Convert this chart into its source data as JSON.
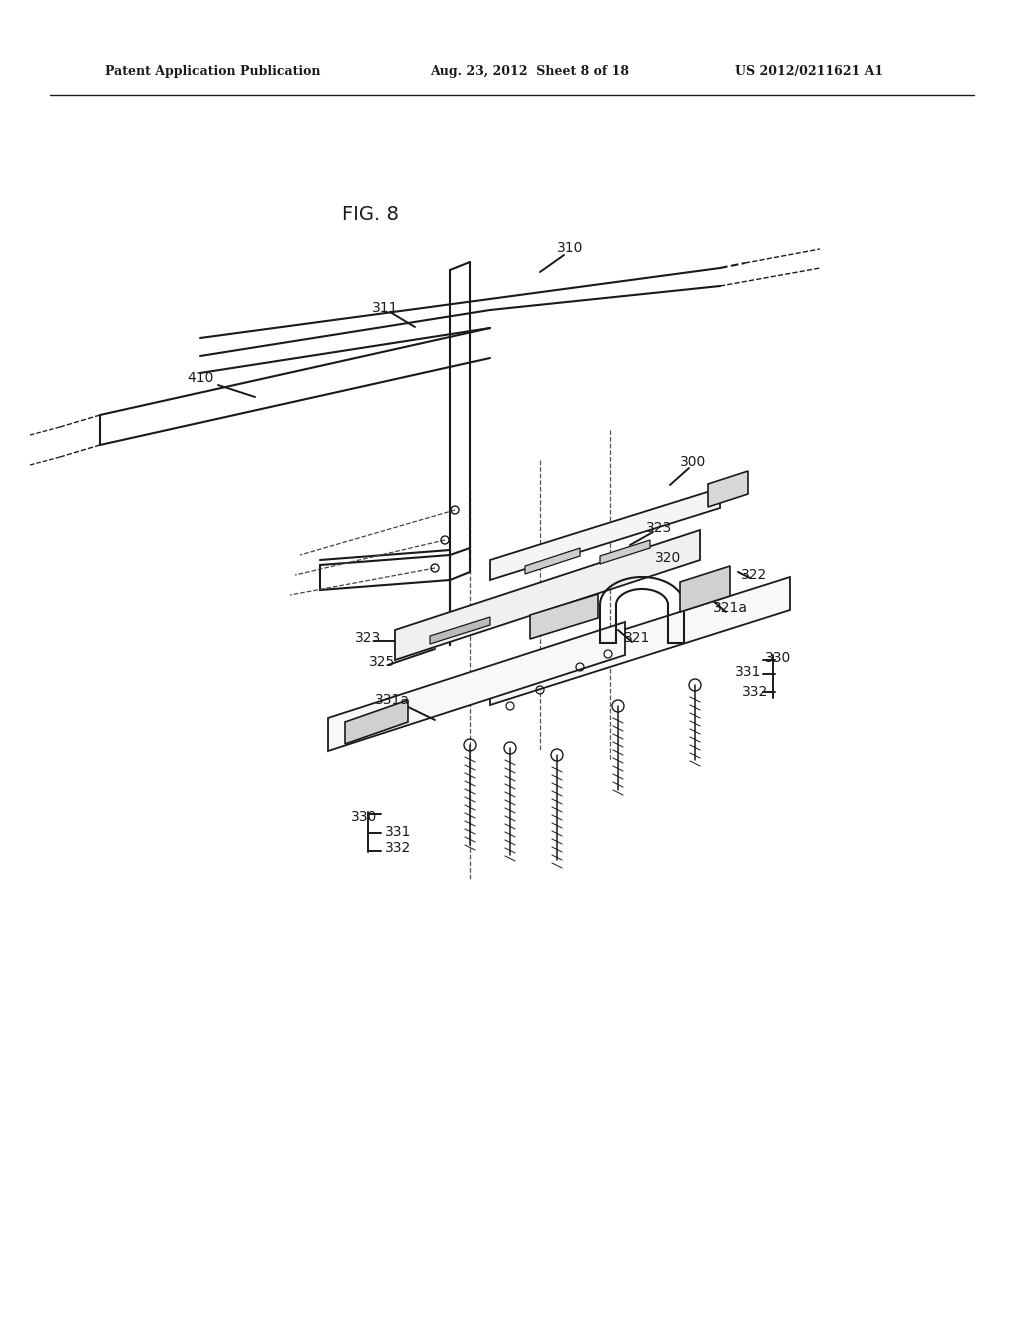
{
  "bg_color": "#ffffff",
  "line_color": "#1a1a1a",
  "header_left": "Patent Application Publication",
  "header_center": "Aug. 23, 2012  Sheet 8 of 18",
  "header_right": "US 2012/0211621 A1",
  "fig_label": "FIG. 8",
  "lw": 1.4
}
